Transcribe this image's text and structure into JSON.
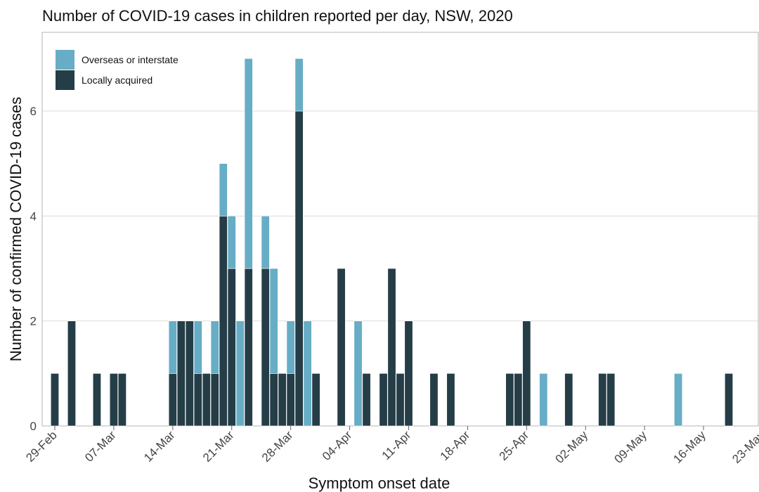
{
  "chart_data": {
    "type": "bar",
    "stacked": true,
    "title": "Number of COVID-19 cases in children reported per day, NSW, 2020",
    "xlabel": "Symptom onset date",
    "ylabel": "Number of confirmed COVID-19 cases",
    "ylim": [
      0,
      7.5
    ],
    "yticks": [
      "0",
      "2",
      "4",
      "6"
    ],
    "xlim": [
      "2020-02-28",
      "2020-05-23"
    ],
    "xticks": [
      "29-Feb",
      "07-Mar",
      "14-Mar",
      "21-Mar",
      "28-Mar",
      "04-Apr",
      "11-Apr",
      "18-Apr",
      "25-Apr",
      "02-May",
      "09-May",
      "16-May",
      "23-May"
    ],
    "grid": true,
    "legend_position": "top-left",
    "series": [
      {
        "name": "Locally acquired",
        "color": "#253d47",
        "points": [
          [
            "2020-02-29",
            1
          ],
          [
            "2020-03-02",
            2
          ],
          [
            "2020-03-05",
            1
          ],
          [
            "2020-03-07",
            1
          ],
          [
            "2020-03-08",
            1
          ],
          [
            "2020-03-14",
            1
          ],
          [
            "2020-03-15",
            2
          ],
          [
            "2020-03-16",
            2
          ],
          [
            "2020-03-17",
            1
          ],
          [
            "2020-03-18",
            1
          ],
          [
            "2020-03-19",
            1
          ],
          [
            "2020-03-20",
            4
          ],
          [
            "2020-03-21",
            3
          ],
          [
            "2020-03-23",
            3
          ],
          [
            "2020-03-25",
            3
          ],
          [
            "2020-03-26",
            1
          ],
          [
            "2020-03-27",
            1
          ],
          [
            "2020-03-28",
            1
          ],
          [
            "2020-03-29",
            6
          ],
          [
            "2020-03-31",
            1
          ],
          [
            "2020-04-03",
            3
          ],
          [
            "2020-04-06",
            1
          ],
          [
            "2020-04-08",
            1
          ],
          [
            "2020-04-09",
            3
          ],
          [
            "2020-04-10",
            1
          ],
          [
            "2020-04-11",
            2
          ],
          [
            "2020-04-14",
            1
          ],
          [
            "2020-04-16",
            1
          ],
          [
            "2020-04-23",
            1
          ],
          [
            "2020-04-24",
            1
          ],
          [
            "2020-04-25",
            2
          ],
          [
            "2020-04-30",
            1
          ],
          [
            "2020-05-04",
            1
          ],
          [
            "2020-05-05",
            1
          ],
          [
            "2020-05-19",
            1
          ]
        ]
      },
      {
        "name": "Overseas or interstate",
        "color": "#67adc6",
        "points": [
          [
            "2020-03-14",
            1
          ],
          [
            "2020-03-17",
            1
          ],
          [
            "2020-03-19",
            1
          ],
          [
            "2020-03-20",
            1
          ],
          [
            "2020-03-21",
            1
          ],
          [
            "2020-03-22",
            2
          ],
          [
            "2020-03-23",
            4
          ],
          [
            "2020-03-25",
            1
          ],
          [
            "2020-03-26",
            2
          ],
          [
            "2020-03-28",
            1
          ],
          [
            "2020-03-29",
            1
          ],
          [
            "2020-03-30",
            2
          ],
          [
            "2020-04-05",
            2
          ],
          [
            "2020-04-27",
            1
          ],
          [
            "2020-05-13",
            1
          ]
        ]
      }
    ]
  }
}
